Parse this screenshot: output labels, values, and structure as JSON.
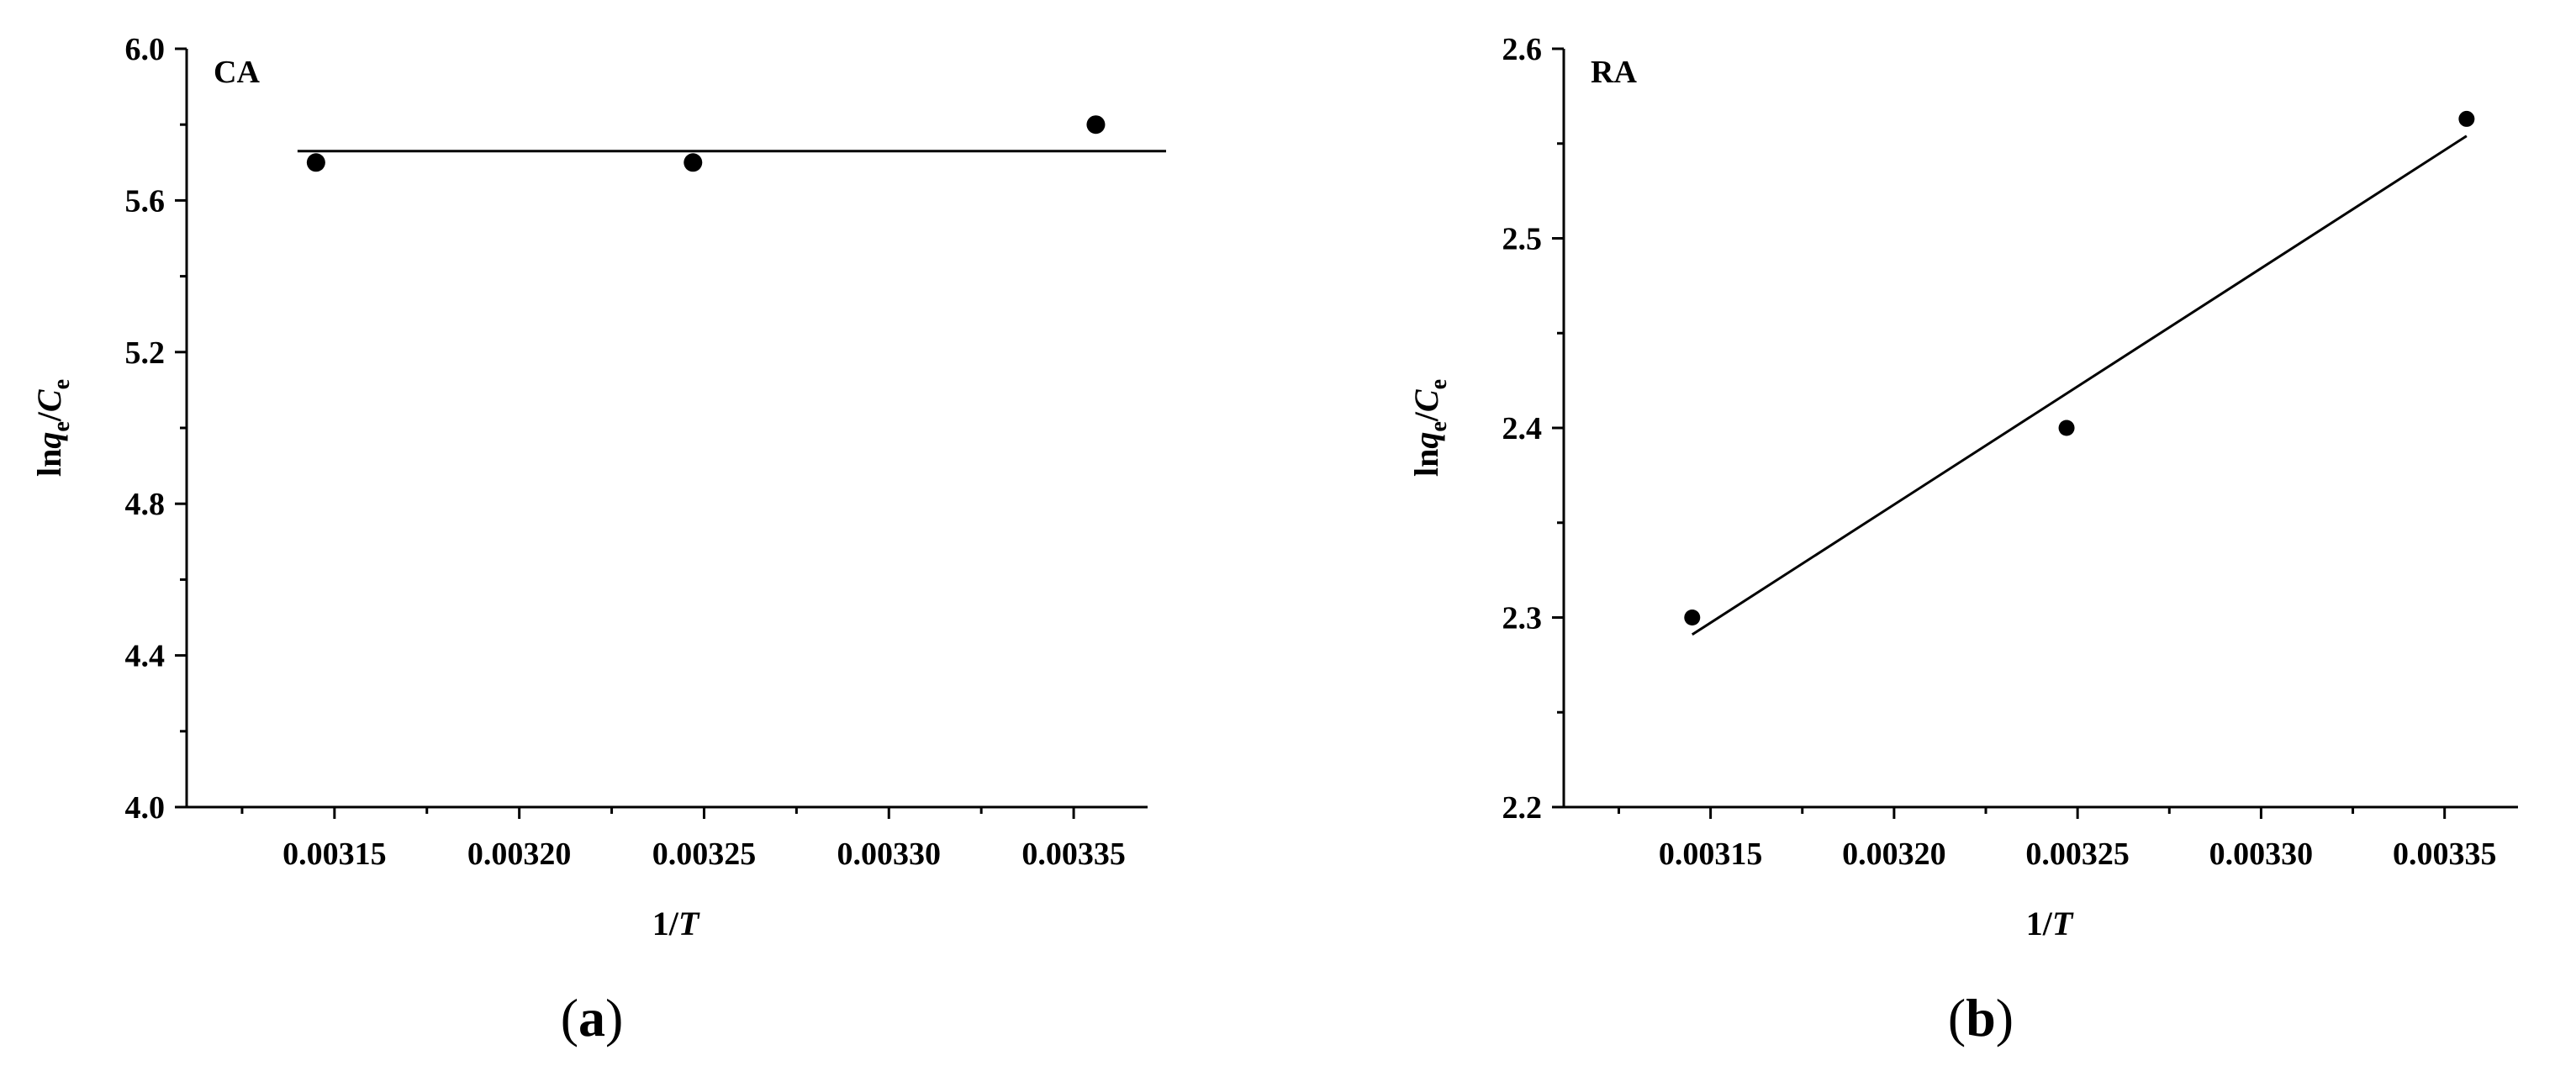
{
  "chart_data": [
    {
      "type": "scatter",
      "tag": "CA",
      "caption_letter": "a",
      "xlabel_prefix": "1/",
      "xlabel_var": "T",
      "ylabel_prefix": "ln",
      "ylabel_q": "q",
      "ylabel_sub1": "e",
      "ylabel_slash": "/",
      "ylabel_C": "C",
      "ylabel_sub2": "e",
      "xlim": [
        0.00311,
        0.00337
      ],
      "ylim": [
        4.0,
        6.0
      ],
      "xticks": [
        0.00315,
        0.0032,
        0.00325,
        0.0033,
        0.00335
      ],
      "xtick_labels": [
        "0.00315",
        "0.00320",
        "0.00325",
        "0.00330",
        "0.00335"
      ],
      "yticks": [
        4.0,
        4.4,
        4.8,
        5.2,
        5.6,
        6.0
      ],
      "ytick_labels": [
        "4.0",
        "4.4",
        "4.8",
        "5.2",
        "5.6",
        "6.0"
      ],
      "points": [
        {
          "x": 0.003145,
          "y": 5.7
        },
        {
          "x": 0.003247,
          "y": 5.7
        },
        {
          "x": 0.003356,
          "y": 5.8
        }
      ],
      "fit_line": {
        "x": [
          0.00314,
          0.003375
        ],
        "y": [
          5.73,
          5.73
        ]
      }
    },
    {
      "type": "scatter",
      "tag": "RA",
      "caption_letter": "b",
      "xlabel_prefix": "1/",
      "xlabel_var": "T",
      "ylabel_prefix": "ln",
      "ylabel_q": "q",
      "ylabel_sub1": "e",
      "ylabel_slash": "/",
      "ylabel_C": "C",
      "ylabel_sub2": "e",
      "xlim": [
        0.00311,
        0.00337
      ],
      "ylim": [
        2.2,
        2.6
      ],
      "xticks": [
        0.00315,
        0.0032,
        0.00325,
        0.0033,
        0.00335
      ],
      "xtick_labels": [
        "0.00315",
        "0.00320",
        "0.00325",
        "0.00330",
        "0.00335"
      ],
      "yticks": [
        2.2,
        2.3,
        2.4,
        2.5,
        2.6
      ],
      "ytick_labels": [
        "2.2",
        "2.3",
        "2.4",
        "2.5",
        "2.6"
      ],
      "points": [
        {
          "x": 0.003145,
          "y": 2.3
        },
        {
          "x": 0.003247,
          "y": 2.4
        },
        {
          "x": 0.003356,
          "y": 2.563
        }
      ],
      "fit_line": {
        "x": [
          0.003145,
          0.003356
        ],
        "y": [
          2.291,
          2.554
        ]
      }
    }
  ]
}
